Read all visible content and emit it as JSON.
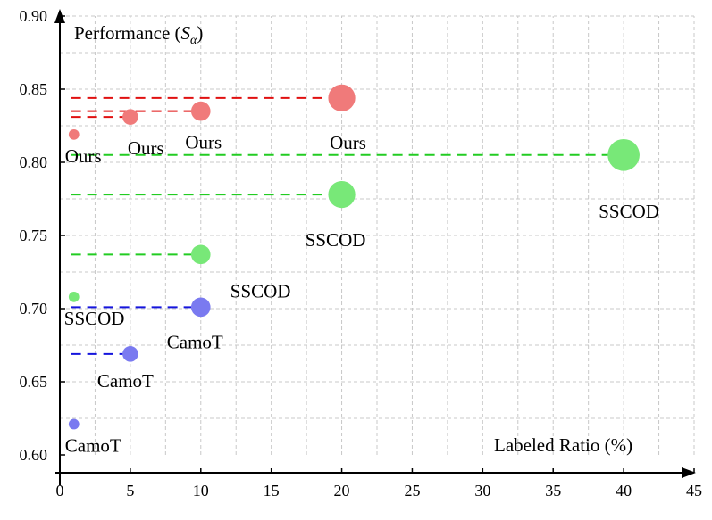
{
  "colors": {
    "ours": "#f07a7a",
    "ours_line": "#e01010",
    "sscod": "#78e878",
    "sscod_line": "#22cc22",
    "camot": "#7a7af0",
    "camot_line": "#1515dd",
    "grid": "#c8c8c8"
  },
  "chart_data": {
    "type": "scatter",
    "title": "",
    "ylabel_text": "Performance",
    "ylabel_symbol": "S",
    "ylabel_subscript": "α",
    "ylabel_open": "(",
    "ylabel_close": ")",
    "xlabel": "Labeled Ratio (%)",
    "xlim": [
      0,
      45
    ],
    "ylim": [
      0.6,
      0.9
    ],
    "xticks": [
      "0",
      "5",
      "10",
      "15",
      "20",
      "25",
      "30",
      "35",
      "40",
      "45"
    ],
    "yticks": [
      "0.60",
      "0.65",
      "0.70",
      "0.75",
      "0.80",
      "0.85",
      "0.90"
    ],
    "xminor_grid": [
      2.5,
      5,
      7.5,
      10,
      12.5,
      15,
      17.5,
      20,
      22.5,
      25,
      27.5,
      30,
      32.5,
      35,
      37.5,
      40,
      42.5,
      45
    ],
    "yminor_grid": [
      0.625,
      0.65,
      0.675,
      0.7,
      0.725,
      0.75,
      0.775,
      0.8,
      0.825,
      0.85,
      0.875,
      0.9
    ],
    "series": [
      {
        "name": "Ours",
        "color_key": "ours",
        "points": [
          {
            "x": 1,
            "y": 0.819,
            "label": "Ours",
            "size": 0.65
          },
          {
            "x": 5,
            "y": 0.831,
            "label": "Ours",
            "size": 1.45
          },
          {
            "x": 10,
            "y": 0.835,
            "label": "Ours",
            "size": 2.2
          },
          {
            "x": 20,
            "y": 0.844,
            "label": "Ours",
            "size": 4.3
          }
        ]
      },
      {
        "name": "SSCOD",
        "color_key": "sscod",
        "points": [
          {
            "x": 1,
            "y": 0.708,
            "label": "SSCOD",
            "size": 0.65
          },
          {
            "x": 10,
            "y": 0.737,
            "label": "SSCOD",
            "size": 2.2
          },
          {
            "x": 20,
            "y": 0.778,
            "label": "SSCOD",
            "size": 4.3
          },
          {
            "x": 40,
            "y": 0.805,
            "label": "SSCOD",
            "size": 6.0
          }
        ]
      },
      {
        "name": "CamoT",
        "color_key": "camot",
        "points": [
          {
            "x": 1,
            "y": 0.621,
            "label": "CamoT",
            "size": 0.65
          },
          {
            "x": 5,
            "y": 0.669,
            "label": "CamoT",
            "size": 1.45
          },
          {
            "x": 10,
            "y": 0.701,
            "label": "CamoT",
            "size": 2.2
          }
        ]
      }
    ]
  }
}
